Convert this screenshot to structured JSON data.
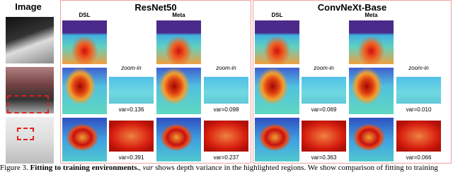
{
  "image_column": {
    "header": "Image"
  },
  "panels": [
    {
      "title": "ResNet50",
      "columns": [
        "DSL",
        "Meta"
      ],
      "zoom_labels": [
        "zoom-in",
        "zoom-in"
      ],
      "var_labels": [
        [
          "var=0.136",
          "var=0.098"
        ],
        [
          "var=0.391",
          "var=0.237"
        ]
      ]
    },
    {
      "title": "ConvNeXt-Base",
      "columns": [
        "DSL",
        "Meta"
      ],
      "zoom_labels": [
        "zoom-in",
        "zoom-in"
      ],
      "var_labels": [
        [
          "var=0.069",
          "var=0.010"
        ],
        [
          "var=0.363",
          "var=0.066"
        ]
      ]
    }
  ],
  "caption": {
    "label": "Figure 3.",
    "heading": "Fitting to training environments.",
    "emphasis": "var",
    "text": "shows depth variance in the highlighted regions. We show comparison of fitting to training"
  }
}
